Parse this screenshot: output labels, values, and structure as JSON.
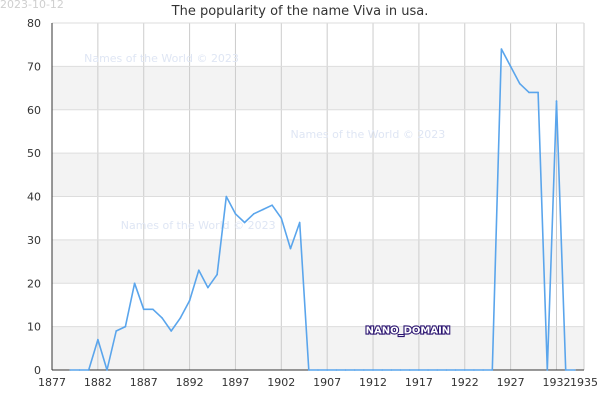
{
  "date_stamp": "2023-10-12",
  "watermark_text": "Names of the World  © 2023",
  "stamp_text": "NANO_DOMAIN",
  "colors": {
    "line": "#5aa5ec",
    "band": "#f3f3f3",
    "grid": "#cccccc",
    "axis": "#333333"
  },
  "chart_data": {
    "type": "line",
    "title": "The popularity of the name Viva in usa.",
    "xlabel": "",
    "ylabel": "",
    "xlim": [
      1877,
      1935
    ],
    "ylim": [
      0,
      80
    ],
    "x_ticks": [
      1877,
      1882,
      1887,
      1892,
      1897,
      1902,
      1907,
      1912,
      1917,
      1922,
      1927,
      1932,
      1935
    ],
    "y_ticks": [
      0,
      10,
      20,
      30,
      40,
      50,
      60,
      70,
      80
    ],
    "grid": true,
    "legend": "none",
    "series": [
      {
        "x": [
          1879,
          1880,
          1881,
          1882,
          1883,
          1884,
          1885,
          1886,
          1887,
          1888,
          1889,
          1890,
          1891,
          1892,
          1893,
          1894,
          1895,
          1896,
          1897,
          1898,
          1899,
          1900,
          1901,
          1902,
          1903,
          1904,
          1905,
          1906,
          1907,
          1908,
          1909,
          1910,
          1911,
          1912,
          1913,
          1914,
          1915,
          1916,
          1917,
          1918,
          1919,
          1920,
          1921,
          1922,
          1923,
          1924,
          1925,
          1926,
          1927,
          1928,
          1929,
          1930,
          1931,
          1932,
          1933,
          1934
        ],
        "values": [
          0,
          0,
          0,
          7,
          0,
          9,
          10,
          20,
          14,
          14,
          12,
          9,
          12,
          16,
          23,
          19,
          22,
          40,
          36,
          34,
          36,
          37,
          38,
          35,
          28,
          34,
          0,
          0,
          0,
          0,
          0,
          0,
          0,
          0,
          0,
          0,
          0,
          0,
          0,
          0,
          0,
          0,
          0,
          0,
          0,
          0,
          0,
          74,
          70,
          66,
          64,
          64,
          0,
          62,
          0,
          0
        ]
      }
    ]
  }
}
